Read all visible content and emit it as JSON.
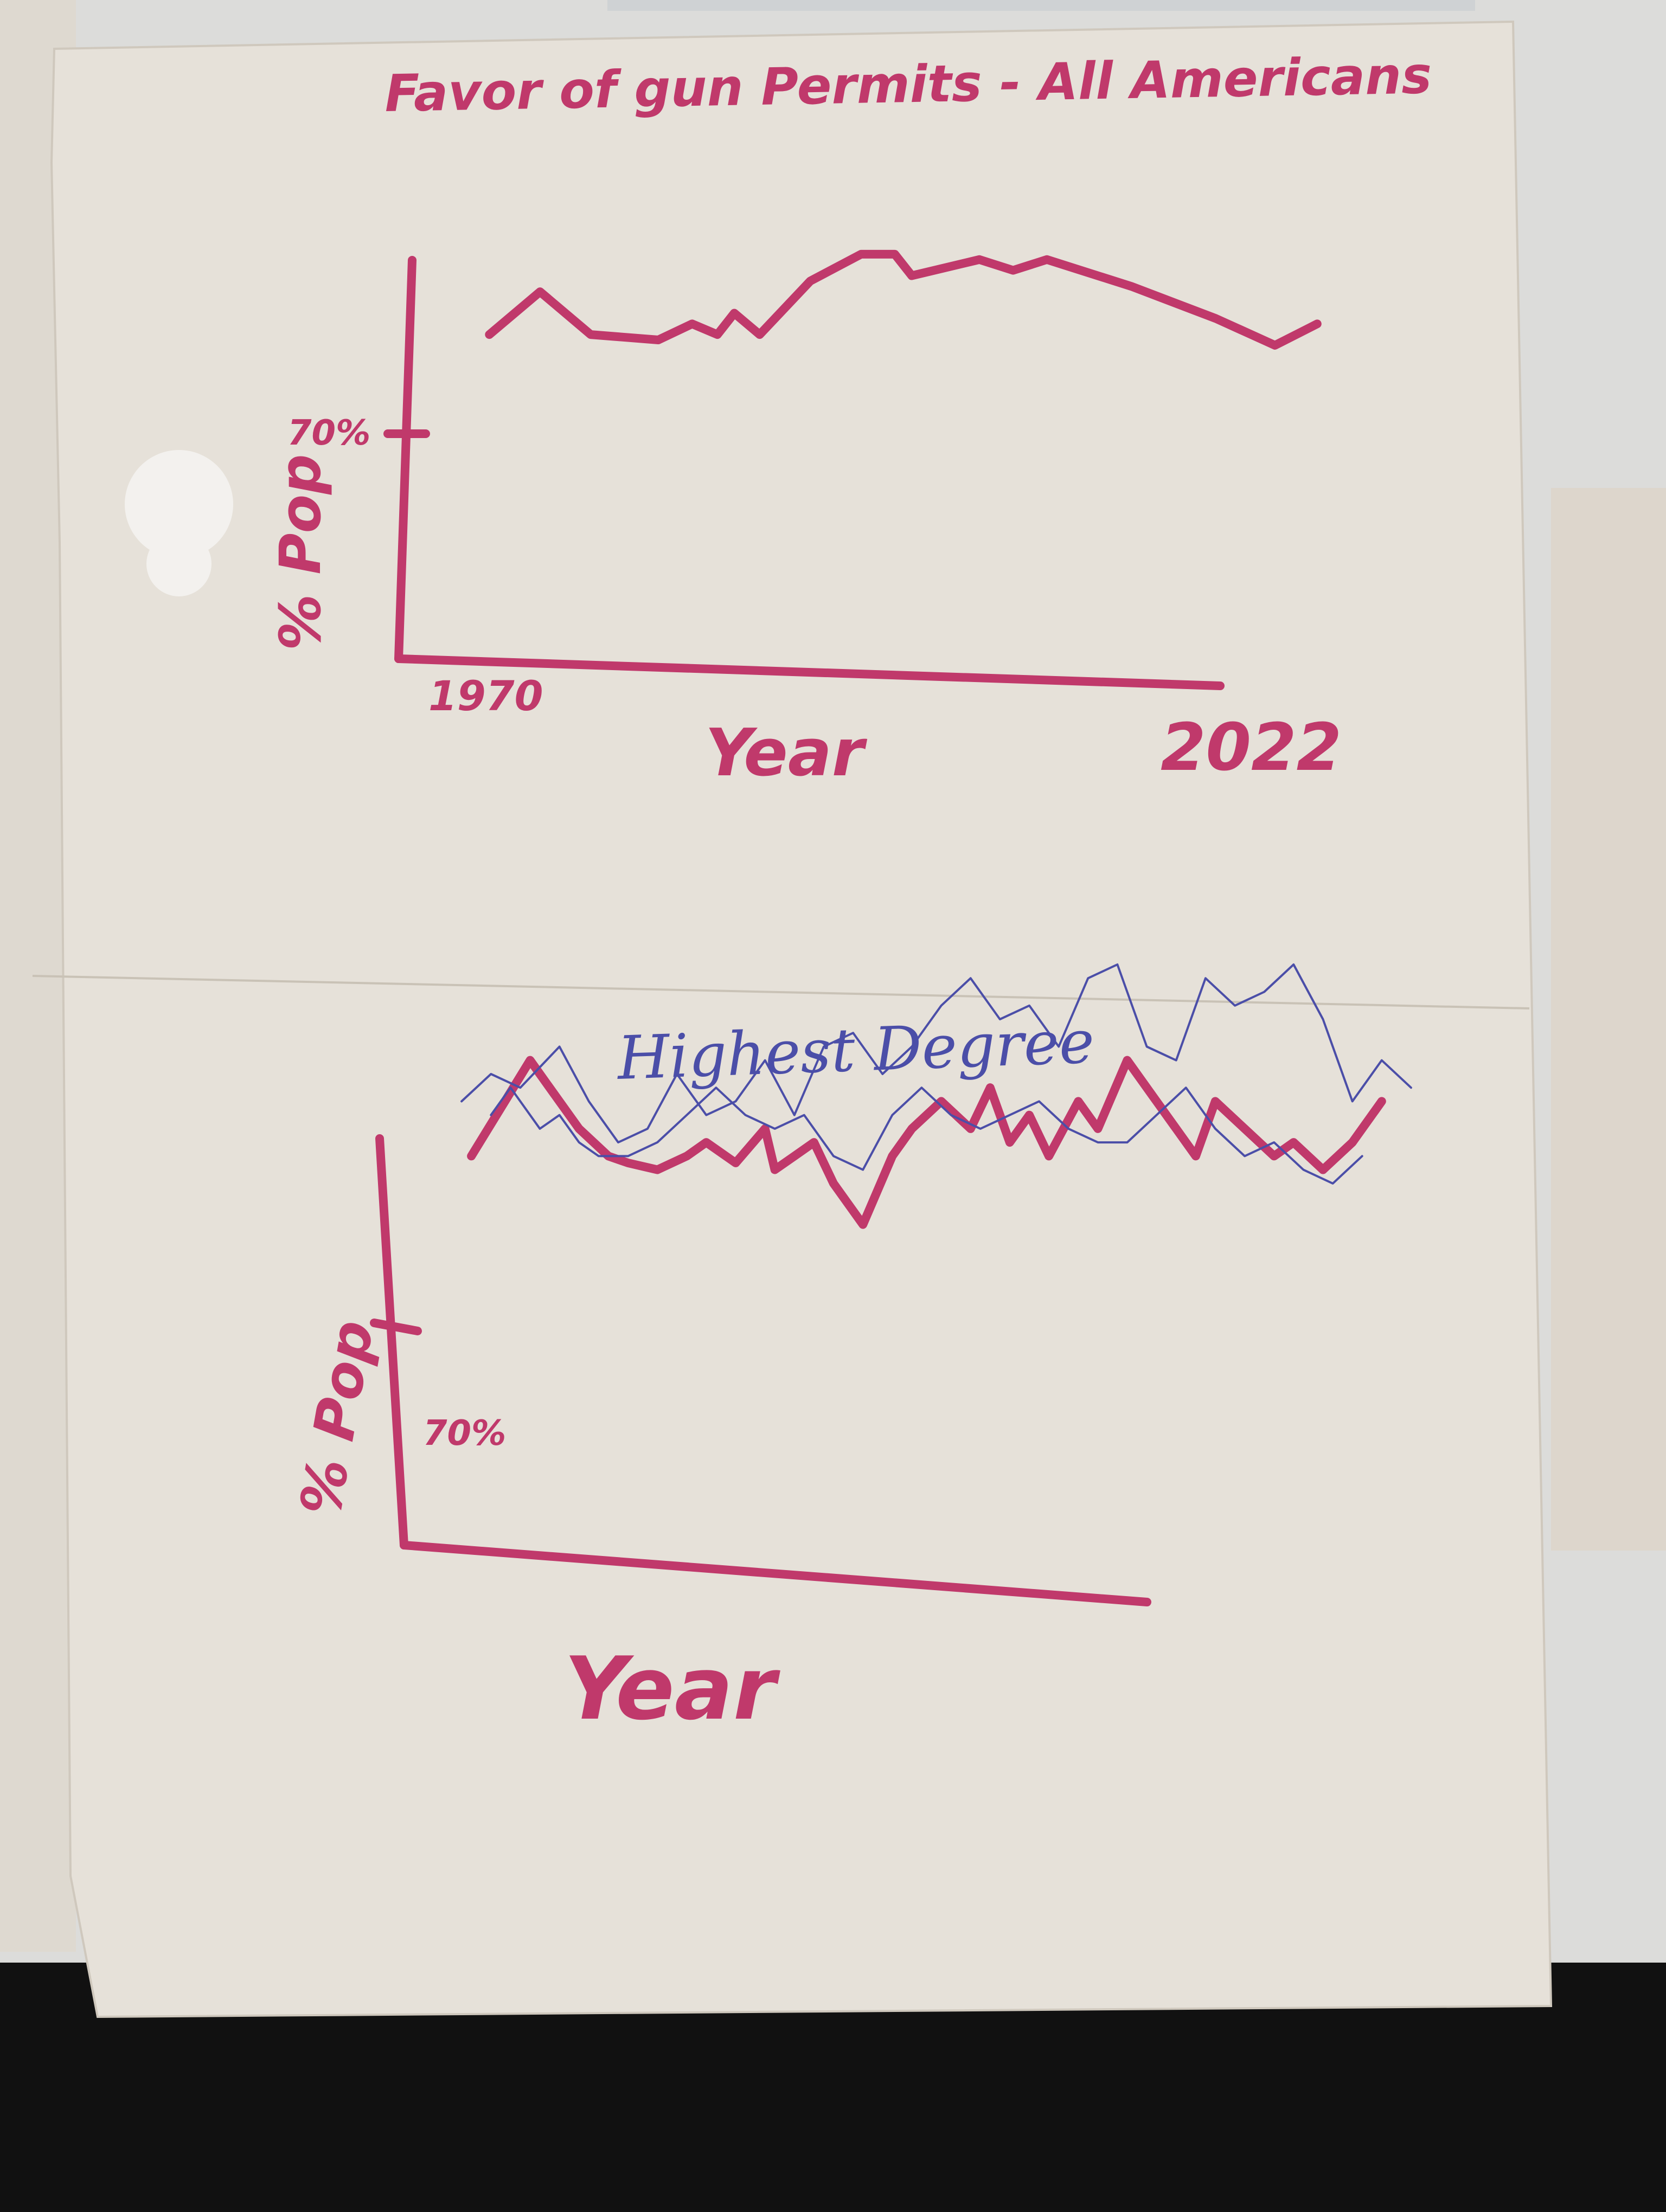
{
  "colors": {
    "desk": "#dcdcda",
    "paper": "#e6e1d9",
    "marker_red": "#c0396b",
    "pen_blue": "#4b4ea8",
    "dark_bottom": "#111111"
  },
  "sheet": {
    "title": "Favor of gun Permits - All Americans",
    "subtitle_bottom": "Highest Degree"
  },
  "chart_data": [
    {
      "type": "line",
      "title": "Favor of gun Permits - All Americans",
      "xlabel": "Year",
      "ylabel": "% Pop",
      "x_tick_labels": [
        "1970",
        "2022"
      ],
      "y_tick_labels": [
        "70%"
      ],
      "xlim": [
        1970,
        2022
      ],
      "ylim": [
        40,
        82
      ],
      "grid": false,
      "series": [
        {
          "color": "#c0396b",
          "x": [
            1972,
            1975,
            1978,
            1982,
            1984,
            1985.5,
            1986.5,
            1988,
            1991,
            1994,
            1996,
            1997,
            2001,
            2003,
            2005,
            2010,
            2015,
            2018.5,
            2021
          ],
          "values": [
            70,
            74,
            70,
            69.5,
            71,
            70,
            72,
            70,
            75,
            77.5,
            77.5,
            75.5,
            77,
            76,
            77,
            74.5,
            71.5,
            69,
            71
          ]
        }
      ]
    },
    {
      "type": "line",
      "title": "Highest Degree",
      "xlabel": "Year",
      "ylabel": "% Pop",
      "y_tick_labels": [
        "70%"
      ],
      "xlim": [
        0,
        100
      ],
      "ylim": [
        40,
        82
      ],
      "grid": false,
      "series": [
        {
          "color": "#c0396b",
          "x": [
            3,
            9,
            11,
            14,
            17,
            19,
            22,
            25,
            27,
            30,
            33,
            34,
            36,
            38,
            40,
            43,
            46,
            48,
            51,
            54,
            56,
            58,
            60,
            62,
            65,
            67,
            70,
            73,
            75,
            77,
            79,
            82,
            85,
            87,
            90,
            93,
            96
          ],
          "values": [
            72,
            79,
            77,
            74,
            72,
            71.5,
            71,
            72,
            73,
            71.5,
            74,
            71,
            72,
            73,
            70,
            67,
            72,
            74,
            76,
            74,
            77,
            73,
            75,
            72,
            76,
            74,
            79,
            76,
            74,
            72,
            76,
            74,
            72,
            73,
            71,
            73,
            76
          ]
        },
        {
          "color": "#4b4ea8",
          "x": [
            5,
            7,
            10,
            12,
            14,
            16,
            19,
            22,
            25,
            28,
            31,
            34,
            37,
            40,
            43,
            46,
            49,
            52,
            55,
            58,
            61,
            64,
            67,
            70,
            73,
            76,
            79,
            82,
            85,
            88,
            91,
            94
          ],
          "values": [
            75,
            77,
            74,
            75,
            73,
            72,
            72,
            73,
            75,
            77,
            75,
            74,
            75,
            72,
            71,
            75,
            77,
            75,
            74,
            75,
            76,
            74,
            73,
            73,
            75,
            77,
            74,
            72,
            73,
            71,
            70,
            72
          ]
        },
        {
          "color": "#4b4ea8",
          "x": [
            2,
            5,
            8,
            12,
            15,
            18,
            21,
            24,
            27,
            30,
            33,
            36,
            39,
            42,
            45,
            48,
            51,
            54,
            57,
            60,
            63,
            66,
            69,
            72,
            75,
            78,
            81,
            84,
            87,
            90,
            93,
            96,
            99
          ],
          "values": [
            76,
            78,
            77,
            80,
            76,
            73,
            74,
            78,
            75,
            76,
            79,
            75,
            80,
            81,
            78,
            80,
            83,
            85,
            82,
            83,
            80,
            85,
            86,
            80,
            79,
            85,
            83,
            84,
            86,
            82,
            76,
            79,
            77
          ]
        }
      ]
    }
  ]
}
